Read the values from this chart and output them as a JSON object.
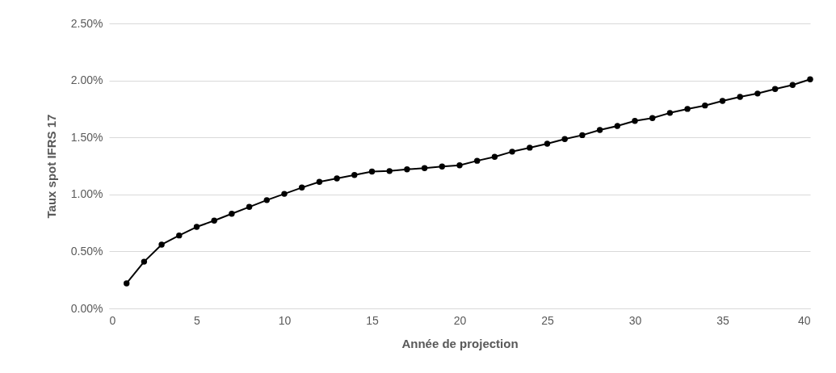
{
  "chart_data": {
    "type": "line",
    "xlabel": "Année de projection",
    "ylabel": "Taux spot IFRS 17",
    "x": [
      1,
      2,
      3,
      4,
      5,
      6,
      7,
      8,
      9,
      10,
      11,
      12,
      13,
      14,
      15,
      16,
      17,
      18,
      19,
      20,
      21,
      22,
      23,
      24,
      25,
      26,
      27,
      28,
      29,
      30,
      31,
      32,
      33,
      34,
      35,
      36,
      37,
      38,
      39,
      40
    ],
    "series": [
      {
        "color": "#000000",
        "values": [
          0.22,
          0.41,
          0.56,
          0.64,
          0.715,
          0.77,
          0.83,
          0.89,
          0.95,
          1.005,
          1.06,
          1.11,
          1.14,
          1.17,
          1.2,
          1.205,
          1.22,
          1.23,
          1.245,
          1.255,
          1.295,
          1.33,
          1.375,
          1.41,
          1.445,
          1.485,
          1.52,
          1.565,
          1.6,
          1.645,
          1.67,
          1.715,
          1.75,
          1.78,
          1.82,
          1.855,
          1.885,
          1.925,
          1.96,
          2.01
        ]
      }
    ],
    "xlim": [
      0,
      40
    ],
    "xticks": [
      0,
      5,
      10,
      15,
      20,
      25,
      30,
      35,
      40
    ],
    "ylim": [
      0,
      2.5
    ],
    "yticks": [
      {
        "value": 0,
        "label": "0.00%"
      },
      {
        "value": 0.5,
        "label": "0.50%"
      },
      {
        "value": 1,
        "label": "1.00%"
      },
      {
        "value": 1.5,
        "label": "1.50%"
      },
      {
        "value": 2,
        "label": "2.00%"
      },
      {
        "value": 2.5,
        "label": "2.50%"
      }
    ],
    "grid": "y",
    "marker": "circle",
    "line_style": "solid"
  }
}
